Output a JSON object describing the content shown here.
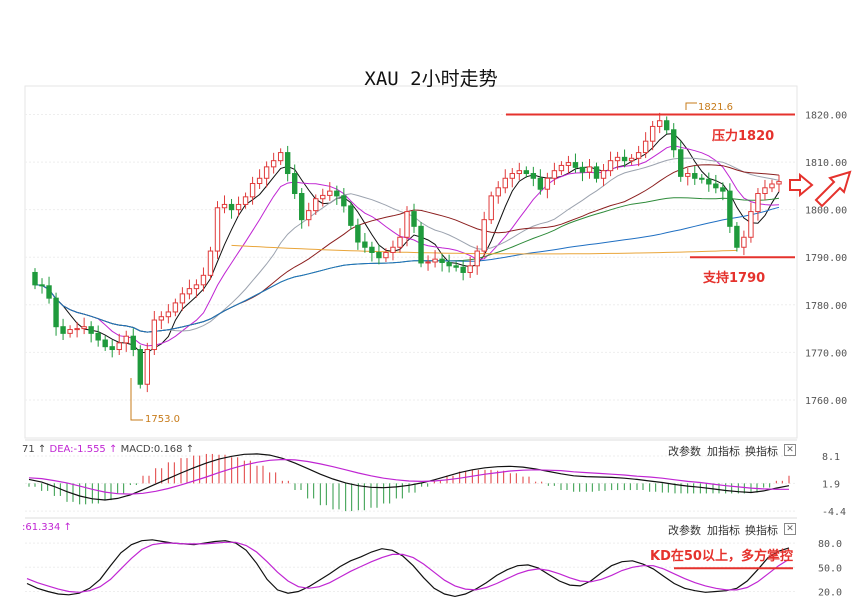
{
  "chart_title": "XAU 2小时走势",
  "chart_data": [
    {
      "type": "candlestick",
      "title": "XAU 2小时走势",
      "ylim": [
        1752,
        1826
      ],
      "y_ticks": [
        "1820.00",
        "1810.00",
        "1800.00",
        "1790.00",
        "1780.00",
        "1770.00",
        "1760.00"
      ],
      "grid": true,
      "candles": [
        {
          "o": 1786.8,
          "c": 1784.2
        },
        {
          "o": 1784.2,
          "c": 1784.0
        },
        {
          "o": 1784.0,
          "c": 1781.4
        },
        {
          "o": 1781.4,
          "c": 1775.4
        },
        {
          "o": 1775.4,
          "c": 1774.0
        },
        {
          "o": 1774.0,
          "c": 1774.8
        },
        {
          "o": 1774.8,
          "c": 1775.0
        },
        {
          "o": 1775.0,
          "c": 1775.4
        },
        {
          "o": 1775.4,
          "c": 1774.0
        },
        {
          "o": 1774.0,
          "c": 1772.6
        },
        {
          "o": 1772.6,
          "c": 1771.2
        },
        {
          "o": 1771.2,
          "c": 1770.6
        },
        {
          "o": 1770.6,
          "c": 1772.0
        },
        {
          "o": 1772.0,
          "c": 1773.4
        },
        {
          "o": 1773.4,
          "c": 1770.6
        },
        {
          "o": 1770.6,
          "c": 1763.3
        },
        {
          "o": 1763.3,
          "c": 1770.6
        },
        {
          "o": 1770.6,
          "c": 1776.8
        },
        {
          "o": 1776.8,
          "c": 1777.5
        },
        {
          "o": 1777.5,
          "c": 1778.5
        },
        {
          "o": 1778.5,
          "c": 1780.4
        },
        {
          "o": 1780.4,
          "c": 1782.3
        },
        {
          "o": 1782.3,
          "c": 1783.4
        },
        {
          "o": 1783.4,
          "c": 1784.2
        },
        {
          "o": 1784.2,
          "c": 1786.2
        },
        {
          "o": 1786.2,
          "c": 1791.3
        },
        {
          "o": 1791.3,
          "c": 1800.4
        },
        {
          "o": 1800.4,
          "c": 1801.1
        },
        {
          "o": 1801.1,
          "c": 1800.0
        },
        {
          "o": 1800.0,
          "c": 1801.1
        },
        {
          "o": 1801.1,
          "c": 1802.7
        },
        {
          "o": 1802.7,
          "c": 1805.5
        },
        {
          "o": 1805.5,
          "c": 1806.6
        },
        {
          "o": 1806.6,
          "c": 1809.0
        },
        {
          "o": 1809.0,
          "c": 1810.3
        },
        {
          "o": 1810.3,
          "c": 1812.0
        },
        {
          "o": 1812.0,
          "c": 1807.6
        },
        {
          "o": 1807.6,
          "c": 1803.4
        },
        {
          "o": 1803.4,
          "c": 1797.9
        },
        {
          "o": 1797.9,
          "c": 1799.8
        },
        {
          "o": 1799.8,
          "c": 1802.3
        },
        {
          "o": 1802.3,
          "c": 1803.0
        },
        {
          "o": 1803.0,
          "c": 1803.9
        },
        {
          "o": 1803.9,
          "c": 1802.9
        },
        {
          "o": 1802.9,
          "c": 1800.8
        },
        {
          "o": 1800.8,
          "c": 1796.7
        },
        {
          "o": 1796.7,
          "c": 1793.2
        },
        {
          "o": 1793.2,
          "c": 1792.1
        },
        {
          "o": 1792.1,
          "c": 1791.0
        },
        {
          "o": 1791.0,
          "c": 1789.9
        },
        {
          "o": 1789.9,
          "c": 1791.0
        },
        {
          "o": 1791.0,
          "c": 1792.1
        },
        {
          "o": 1792.1,
          "c": 1794.2
        },
        {
          "o": 1794.2,
          "c": 1799.6
        },
        {
          "o": 1799.6,
          "c": 1796.5
        },
        {
          "o": 1796.5,
          "c": 1788.8
        },
        {
          "o": 1788.8,
          "c": 1789.0
        },
        {
          "o": 1789.0,
          "c": 1789.6
        },
        {
          "o": 1789.6,
          "c": 1788.9
        },
        {
          "o": 1788.9,
          "c": 1788.2
        },
        {
          "o": 1788.2,
          "c": 1787.9
        },
        {
          "o": 1787.9,
          "c": 1786.8
        },
        {
          "o": 1786.8,
          "c": 1788.2
        },
        {
          "o": 1788.2,
          "c": 1791.3
        },
        {
          "o": 1791.3,
          "c": 1797.9
        },
        {
          "o": 1797.9,
          "c": 1802.9
        },
        {
          "o": 1802.9,
          "c": 1804.6
        },
        {
          "o": 1804.6,
          "c": 1806.6
        },
        {
          "o": 1806.6,
          "c": 1807.6
        },
        {
          "o": 1807.6,
          "c": 1808.2
        },
        {
          "o": 1808.2,
          "c": 1807.6
        },
        {
          "o": 1807.6,
          "c": 1806.6
        },
        {
          "o": 1806.6,
          "c": 1804.3
        },
        {
          "o": 1804.3,
          "c": 1806.6
        },
        {
          "o": 1806.6,
          "c": 1808.2
        },
        {
          "o": 1808.2,
          "c": 1809.3
        },
        {
          "o": 1809.3,
          "c": 1809.9
        },
        {
          "o": 1809.9,
          "c": 1808.9
        },
        {
          "o": 1808.9,
          "c": 1807.9
        },
        {
          "o": 1807.9,
          "c": 1809.0
        },
        {
          "o": 1809.0,
          "c": 1806.6
        },
        {
          "o": 1806.6,
          "c": 1808.2
        },
        {
          "o": 1808.2,
          "c": 1810.3
        },
        {
          "o": 1810.3,
          "c": 1811.0
        },
        {
          "o": 1811.0,
          "c": 1810.3
        },
        {
          "o": 1810.3,
          "c": 1810.8
        },
        {
          "o": 1810.8,
          "c": 1812.0
        },
        {
          "o": 1812.0,
          "c": 1814.4
        },
        {
          "o": 1814.4,
          "c": 1817.5
        },
        {
          "o": 1817.5,
          "c": 1818.7
        },
        {
          "o": 1818.7,
          "c": 1816.8
        },
        {
          "o": 1816.8,
          "c": 1812.6
        },
        {
          "o": 1812.6,
          "c": 1807.0
        },
        {
          "o": 1807.0,
          "c": 1807.6
        },
        {
          "o": 1807.6,
          "c": 1806.6
        },
        {
          "o": 1806.6,
          "c": 1806.4
        },
        {
          "o": 1806.4,
          "c": 1805.4
        },
        {
          "o": 1805.4,
          "c": 1804.6
        },
        {
          "o": 1804.6,
          "c": 1803.9
        },
        {
          "o": 1803.9,
          "c": 1796.5
        },
        {
          "o": 1796.5,
          "c": 1792.1
        },
        {
          "o": 1792.1,
          "c": 1794.2
        },
        {
          "o": 1794.2,
          "c": 1799.6
        },
        {
          "o": 1799.6,
          "c": 1803.4
        },
        {
          "o": 1803.4,
          "c": 1804.6
        },
        {
          "o": 1804.6,
          "c": 1805.4
        },
        {
          "o": 1805.4,
          "c": 1805.9
        }
      ],
      "annotations": {
        "high_label": "1821.6",
        "low_label": "1753.0",
        "resistance_label": "压力1820",
        "resistance_level": 1820,
        "support_label": "支持1790",
        "support_level": 1790
      },
      "colors": {
        "up": "#e03b3b",
        "down": "#1f9a3c",
        "annotation": "#e5322d"
      }
    },
    {
      "type": "line",
      "title": "MACD",
      "readout": {
        "dif_prefix": "71",
        "dea_label": "DEA:-1.555",
        "macd_label": "MACD:0.168"
      },
      "ylim": [
        -5.5,
        9.0
      ],
      "y_ticks": [
        "8.1",
        "1.9",
        "-4.4"
      ],
      "series": [
        {
          "name": "DIF",
          "values": [
            1.0,
            0.3,
            -0.8,
            -2.1,
            -3.2,
            -3.9,
            -4.2,
            -3.8,
            -2.9,
            -1.6,
            -0.2,
            1.2,
            2.6,
            3.9,
            5.1,
            6.1,
            6.8,
            7.3,
            7.4,
            7.1,
            6.3,
            5.1,
            3.7,
            2.3,
            1.1,
            0.1,
            -0.6,
            -1.0,
            -1.1,
            -0.9,
            -0.5,
            0.1,
            0.9,
            1.8,
            2.7,
            3.4,
            3.9,
            4.2,
            4.3,
            4.1,
            3.6,
            3.0,
            2.4,
            1.9,
            1.7,
            1.6,
            1.5,
            1.3,
            1.0,
            0.6,
            0.2,
            -0.3,
            -0.7,
            -1.0,
            -1.4,
            -1.8,
            -2.1,
            -2.3,
            -1.9,
            -1.2,
            -0.6
          ]
        },
        {
          "name": "DEA",
          "values": [
            1.4,
            1.2,
            0.7,
            0.1,
            -0.7,
            -1.5,
            -2.2,
            -2.6,
            -2.7,
            -2.5,
            -2.0,
            -1.3,
            -0.4,
            0.6,
            1.6,
            2.7,
            3.7,
            4.6,
            5.3,
            5.8,
            6.0,
            5.9,
            5.5,
            4.9,
            4.2,
            3.4,
            2.6,
            1.9,
            1.3,
            0.9,
            0.6,
            0.5,
            0.6,
            0.9,
            1.3,
            1.8,
            2.3,
            2.7,
            3.1,
            3.3,
            3.4,
            3.3,
            3.2,
            2.9,
            2.7,
            2.5,
            2.3,
            2.1,
            1.8,
            1.6,
            1.3,
            0.9,
            0.5,
            0.2,
            -0.2,
            -0.6,
            -0.9,
            -1.2,
            -1.4,
            -1.5,
            -1.5
          ]
        }
      ],
      "colors": {
        "dif": "#111111",
        "dea": "#c026d3"
      }
    },
    {
      "type": "line",
      "title": "KD",
      "readout": {
        "k_label": ":61.334"
      },
      "ylim": [
        12,
        90
      ],
      "y_ticks": [
        "80.0",
        "50.0",
        "20.0"
      ],
      "series": [
        {
          "name": "K",
          "values": [
            30,
            24,
            20,
            17,
            16,
            18,
            24,
            35,
            52,
            68,
            78,
            83,
            84,
            82,
            80,
            79,
            78,
            80,
            82,
            83,
            80,
            71,
            55,
            35,
            22,
            18,
            20,
            26,
            34,
            42,
            51,
            58,
            63,
            69,
            73,
            71,
            64,
            52,
            37,
            24,
            17,
            14,
            17,
            23,
            31,
            40,
            47,
            52,
            53,
            49,
            41,
            33,
            28,
            27,
            33,
            43,
            52,
            57,
            58,
            54,
            48,
            39,
            30,
            24,
            21,
            19,
            20,
            21,
            24,
            33,
            47,
            62,
            70,
            74
          ]
        },
        {
          "name": "D",
          "values": [
            36,
            31,
            27,
            23,
            20,
            19,
            21,
            26,
            35,
            48,
            61,
            72,
            78,
            80,
            80,
            79,
            79,
            79,
            80,
            81,
            81,
            77,
            69,
            57,
            44,
            33,
            26,
            24,
            26,
            31,
            38,
            45,
            51,
            57,
            62,
            66,
            66,
            62,
            54,
            44,
            34,
            27,
            23,
            22,
            25,
            30,
            36,
            42,
            46,
            48,
            46,
            42,
            37,
            33,
            32,
            35,
            40,
            46,
            50,
            52,
            52,
            48,
            42,
            36,
            31,
            27,
            24,
            22,
            22,
            25,
            32,
            42,
            52,
            60
          ]
        }
      ],
      "annotations": {
        "note": "KD在50以上，多方掌控",
        "level": 50
      },
      "colors": {
        "k": "#111111",
        "d": "#c026d3"
      }
    }
  ],
  "toolbar": {
    "param_label": "改参数",
    "add_indicator_label": "加指标",
    "switch_indicator_label": "换指标",
    "close_glyph": "✕"
  },
  "icons": {
    "arrow": "up-arrow-icon",
    "close": "close-icon",
    "next": "right-arrow-icon"
  }
}
